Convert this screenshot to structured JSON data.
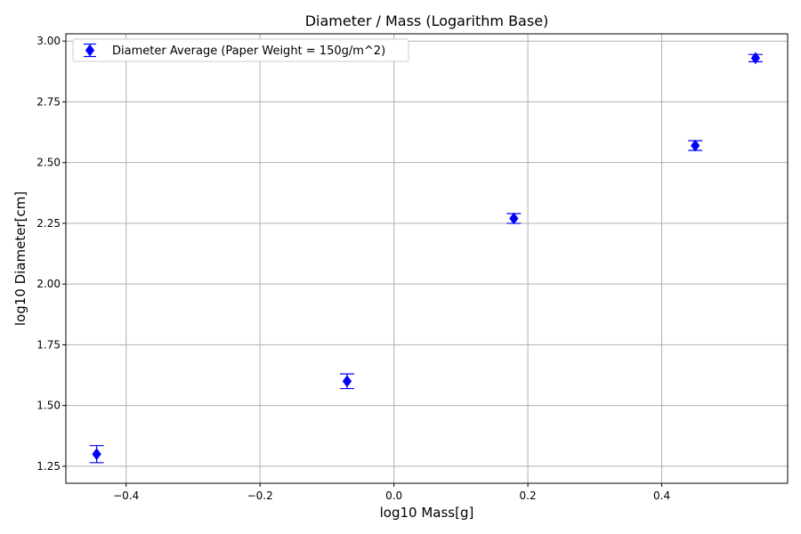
{
  "chart_data": {
    "type": "scatter",
    "title": "Diameter / Mass (Logarithm Base)",
    "xlabel": "log10 Mass[g]",
    "ylabel": "log10 Diameter[cm]",
    "xlim": [
      -0.49,
      0.588
    ],
    "ylim": [
      1.18,
      3.03
    ],
    "xticks": [
      -0.4,
      -0.2,
      0.0,
      0.2,
      0.4
    ],
    "xtick_labels": [
      "−0.4",
      "−0.2",
      "0.0",
      "0.2",
      "0.4"
    ],
    "yticks": [
      1.25,
      1.5,
      1.75,
      2.0,
      2.25,
      2.5,
      2.75,
      3.0
    ],
    "ytick_labels": [
      "1.25",
      "1.50",
      "1.75",
      "2.00",
      "2.25",
      "2.50",
      "2.75",
      "3.00"
    ],
    "grid": true,
    "legend_position": "top-left",
    "series": [
      {
        "name": "Diameter Average (Paper Weight = 150g/m^2)",
        "color": "#0000ff",
        "marker": "diamond",
        "points": [
          {
            "x": -0.444,
            "y": 1.3,
            "err": 0.035
          },
          {
            "x": -0.07,
            "y": 1.6,
            "err": 0.03
          },
          {
            "x": 0.179,
            "y": 2.27,
            "err": 0.02
          },
          {
            "x": 0.45,
            "y": 2.57,
            "err": 0.02
          },
          {
            "x": 0.54,
            "y": 2.93,
            "err": 0.015
          }
        ]
      }
    ]
  }
}
